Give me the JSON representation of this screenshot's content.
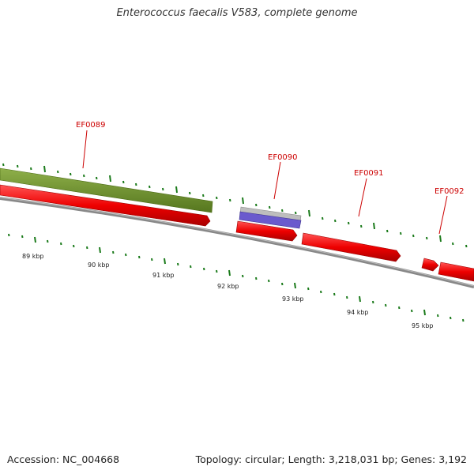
{
  "title": "Enterococcus faecalis V583, complete genome",
  "footer": {
    "accession": "Accession: NC_004668",
    "summary": "Topology: circular; Length: 3,218,031 bp; Genes: 3,192"
  },
  "genes": [
    "EF0089",
    "EF0090",
    "EF0091",
    "EF0092"
  ],
  "ticks": [
    "89 kbp",
    "90 kbp",
    "91 kbp",
    "92 kbp",
    "93 kbp",
    "94 kbp",
    "95 kbp"
  ],
  "colors": {
    "cds": "#ee0000",
    "gene_label": "#cc0000",
    "green_feature": "#6b8e23",
    "purple_feature": "#6a5acd",
    "gray_feature": "#b0b0b0",
    "backbone": "#888888",
    "tick": "#1a7a1a"
  }
}
